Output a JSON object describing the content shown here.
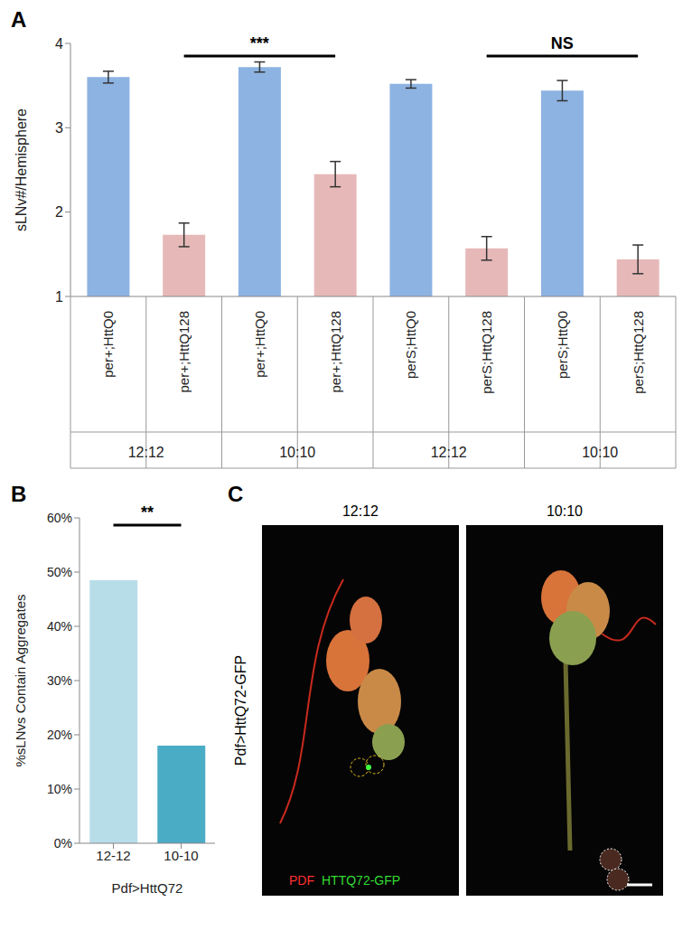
{
  "chart_data": [
    {
      "panel": "A",
      "type": "bar",
      "y_label": "sLNv#/Hemisphere",
      "categories": [
        "per+;HttQ0",
        "per+;HttQ128",
        "per+;HttQ0",
        "per+;HttQ128",
        "perS;HttQ0",
        "perS;HttQ128",
        "perS;HttQ0",
        "perS;HttQ128"
      ],
      "groups": [
        "12:12",
        "12:12",
        "10:10",
        "10:10",
        "12:12",
        "12:12",
        "10:10",
        "10:10"
      ],
      "values": [
        3.6,
        1.73,
        3.72,
        2.45,
        3.52,
        1.57,
        3.44,
        1.44
      ],
      "errors": [
        0.07,
        0.14,
        0.06,
        0.15,
        0.05,
        0.14,
        0.12,
        0.17
      ],
      "colors": [
        "#8db3e2",
        "#e6b9b8",
        "#8db3e2",
        "#e6b9b8",
        "#8db3e2",
        "#e6b9b8",
        "#8db3e2",
        "#e6b9b8"
      ],
      "ylim": [
        1,
        4
      ],
      "yticks": [
        1,
        2,
        3,
        4
      ],
      "annotations": [
        {
          "text": "***",
          "from": 1,
          "to": 3
        },
        {
          "text": "NS",
          "from": 5,
          "to": 7
        }
      ]
    },
    {
      "panel": "B",
      "type": "bar",
      "y_label": "%sLNvs Contain Aggregates",
      "x_label": "Pdf>HttQ72",
      "categories": [
        "12-12",
        "10-10"
      ],
      "values": [
        48.5,
        18
      ],
      "colors": [
        "#b7dde8",
        "#4bacc6"
      ],
      "ylim": [
        0,
        60
      ],
      "yticks": [
        {
          "value": 0,
          "label": "0%"
        },
        {
          "value": 10,
          "label": "10%"
        },
        {
          "value": 20,
          "label": "20%"
        },
        {
          "value": 30,
          "label": "30%"
        },
        {
          "value": 40,
          "label": "40%"
        },
        {
          "value": 50,
          "label": "50%"
        },
        {
          "value": 60,
          "label": "60%"
        }
      ],
      "annotations": [
        {
          "text": "**",
          "from": 0,
          "to": 1
        }
      ]
    }
  ],
  "panel_c": {
    "panel": "C",
    "conditions": [
      "12:12",
      "10:10"
    ],
    "genotype": "Pdf>HttQ72-GFP",
    "stain_labels": [
      {
        "text": "PDF",
        "color": "#ff3030"
      },
      {
        "text": "HTTQ72-GFP",
        "color": "#33dd33"
      }
    ]
  }
}
